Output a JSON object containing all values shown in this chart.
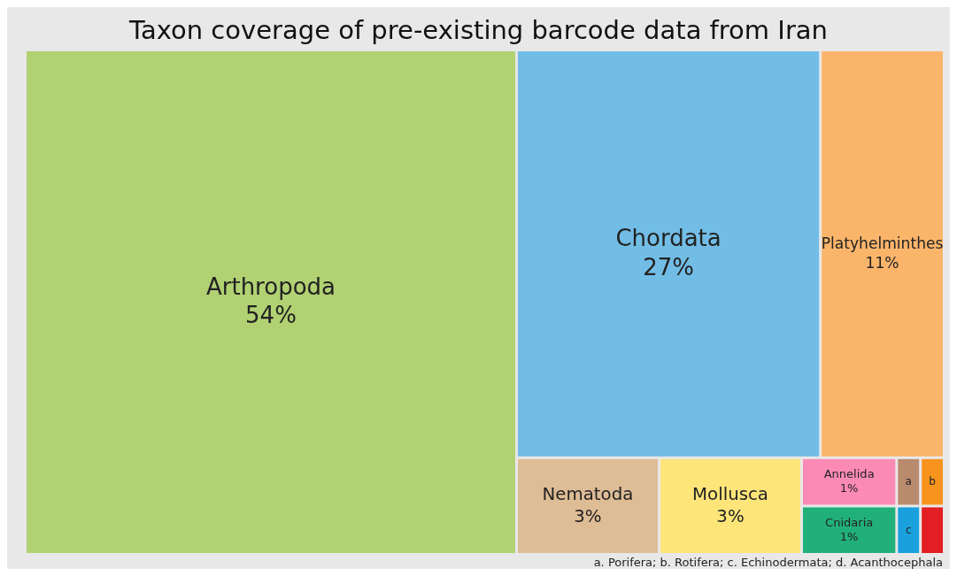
{
  "chart_data": {
    "type": "other",
    "title": "Taxon coverage of pre-existing barcode data from Iran",
    "categories": [
      "Arthropoda",
      "Chordata",
      "Platyhelminthes",
      "Nematoda",
      "Mollusca",
      "Annelida",
      "Cnidaria",
      "a",
      "b",
      "c",
      null
    ],
    "values": [
      54,
      27,
      11,
      3,
      3,
      1,
      1,
      null,
      null,
      null,
      null
    ],
    "value_labels": [
      "54%",
      "27%",
      "11%",
      "3%",
      "3%",
      "1%",
      "1%",
      null,
      null,
      null,
      null
    ],
    "colors": [
      "#b1d173",
      "#72bde6",
      "#fbb56b",
      "#debc95",
      "#fde57a",
      "#fb8bb5",
      "#22b07a",
      "#b98b6e",
      "#f7941d",
      "#1aa1dd",
      "#e31e24"
    ],
    "annotations": [
      "a. Porifera; b. Rotifera; c. Echinodermata; d. Acanthocephala"
    ]
  }
}
